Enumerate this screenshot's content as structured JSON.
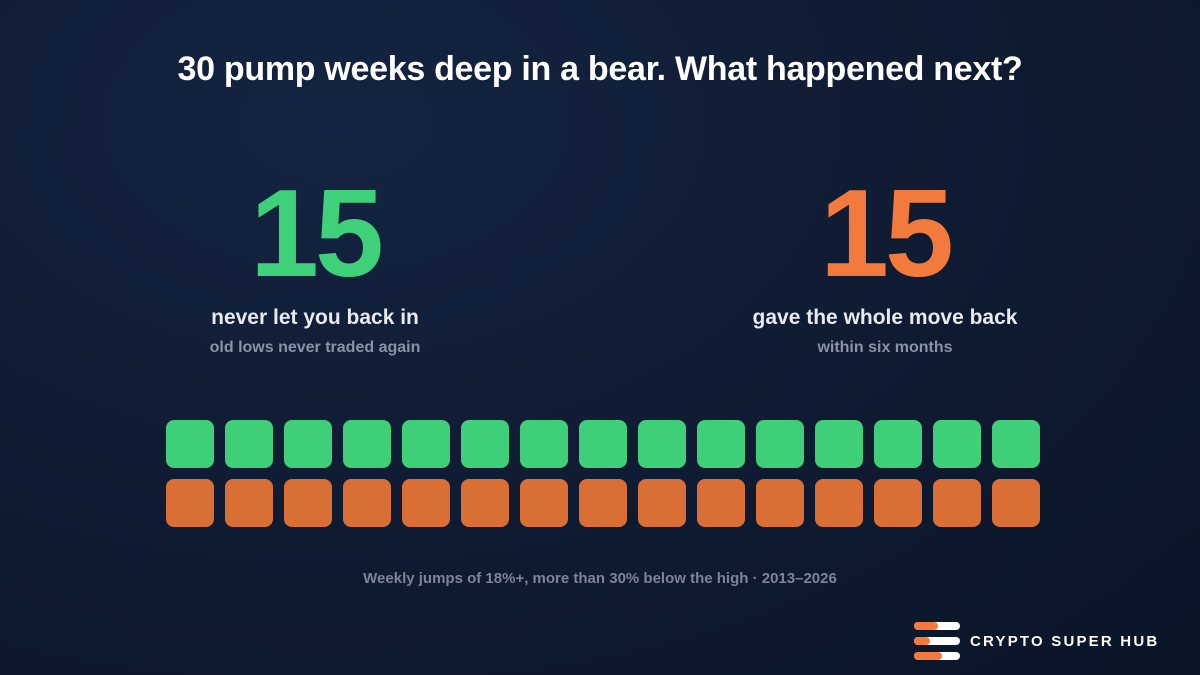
{
  "title": "30 pump weeks deep in a bear. What happened next?",
  "stats": [
    {
      "value": "15",
      "label": "never let you back in",
      "sub": "old lows never traded again",
      "color": "#3fd17a"
    },
    {
      "value": "15",
      "label": "gave the whole move back",
      "sub": "within six months",
      "color": "#f27a3c"
    }
  ],
  "grid": {
    "rows": [
      {
        "count": 15,
        "color": "#3fcf78"
      },
      {
        "count": 15,
        "color": "#d96f35"
      }
    ]
  },
  "footnote": "Weekly jumps of 18%+, more than 30% below the high · 2013–2026",
  "brand": {
    "name": "CRYPTO SUPER HUB",
    "icon": "stacked-bars-logo-icon"
  }
}
